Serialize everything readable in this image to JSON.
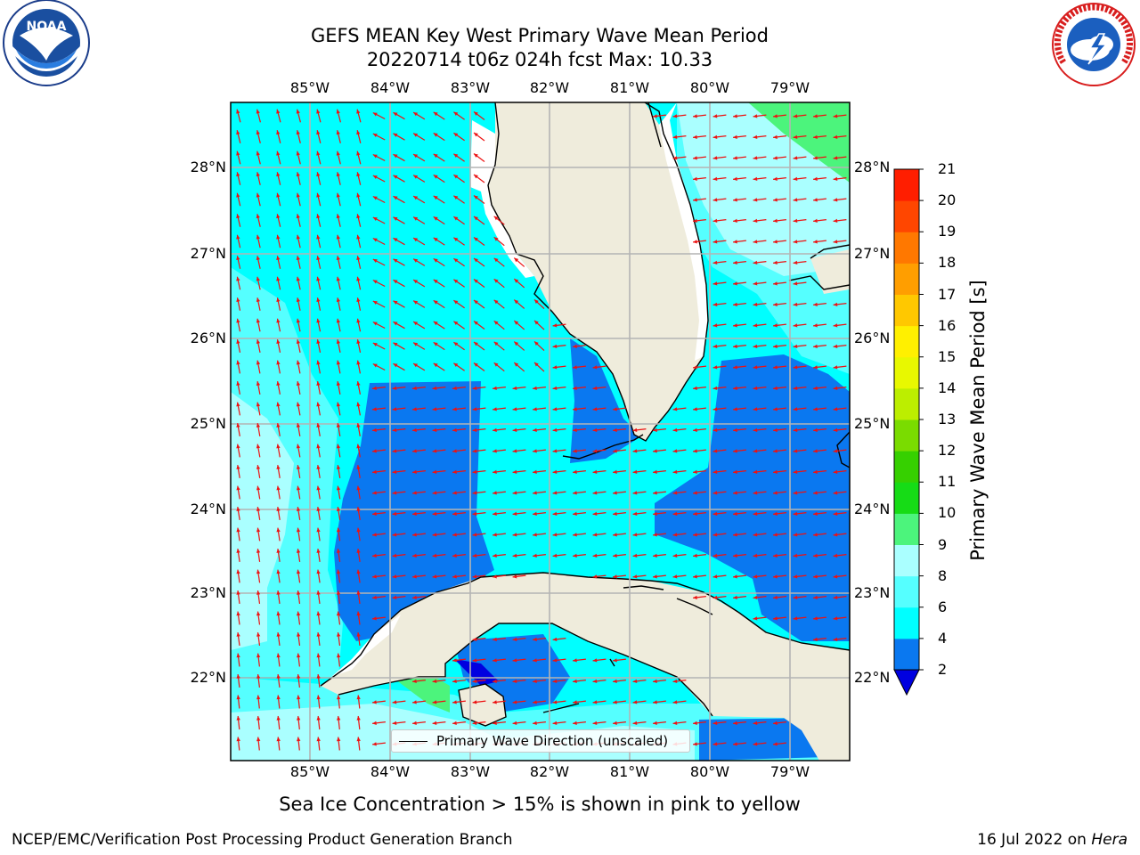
{
  "title": {
    "line1": "GEFS MEAN Key West Primary Wave Mean Period",
    "line2": "20220714 t06z 024h fcst   Max: 10.33"
  },
  "logos": {
    "left": "NOAA",
    "right": "NATIONAL WEATHER SERVICE"
  },
  "axes": {
    "lon_ticks": [
      "85°W",
      "84°W",
      "83°W",
      "82°W",
      "81°W",
      "80°W",
      "79°W"
    ],
    "lat_ticks": [
      "28°N",
      "27°N",
      "26°N",
      "25°N",
      "24°N",
      "23°N",
      "22°N"
    ],
    "lon_range": [
      -86.0,
      -78.2
    ],
    "lat_range": [
      21.0,
      28.8
    ],
    "grid": true
  },
  "legend": {
    "label": "Primary Wave Direction (unscaled)",
    "line_color": "#000000"
  },
  "colorbar": {
    "label": "Primary Wave Mean Period [s]",
    "ticks": [
      "2",
      "4",
      "6",
      "8",
      "9",
      "10",
      "11",
      "12",
      "13",
      "14",
      "15",
      "16",
      "17",
      "18",
      "19",
      "20",
      "21"
    ],
    "colors": [
      "#0000e0",
      "#0a78f0",
      "#00ffff",
      "#55ffff",
      "#aaffff",
      "#4cf47c",
      "#16dc16",
      "#36d000",
      "#7adc00",
      "#bcee00",
      "#e8f800",
      "#fff000",
      "#ffc800",
      "#ff9e00",
      "#ff7800",
      "#ff4600",
      "#ff1e00",
      "#ff0000"
    ],
    "extend": "min"
  },
  "colors": {
    "land": "#efecdc",
    "arrow": "#ee1111",
    "grid": "#b4b4b4",
    "coast": "#000000"
  },
  "caption": "Sea Ice Concentration > 15% is shown in pink to yellow",
  "footer": {
    "left": "NCEP/EMC/Verification Post Processing Product Generation Branch",
    "right_date": "16 Jul 2022 on ",
    "right_host": "Hera"
  }
}
